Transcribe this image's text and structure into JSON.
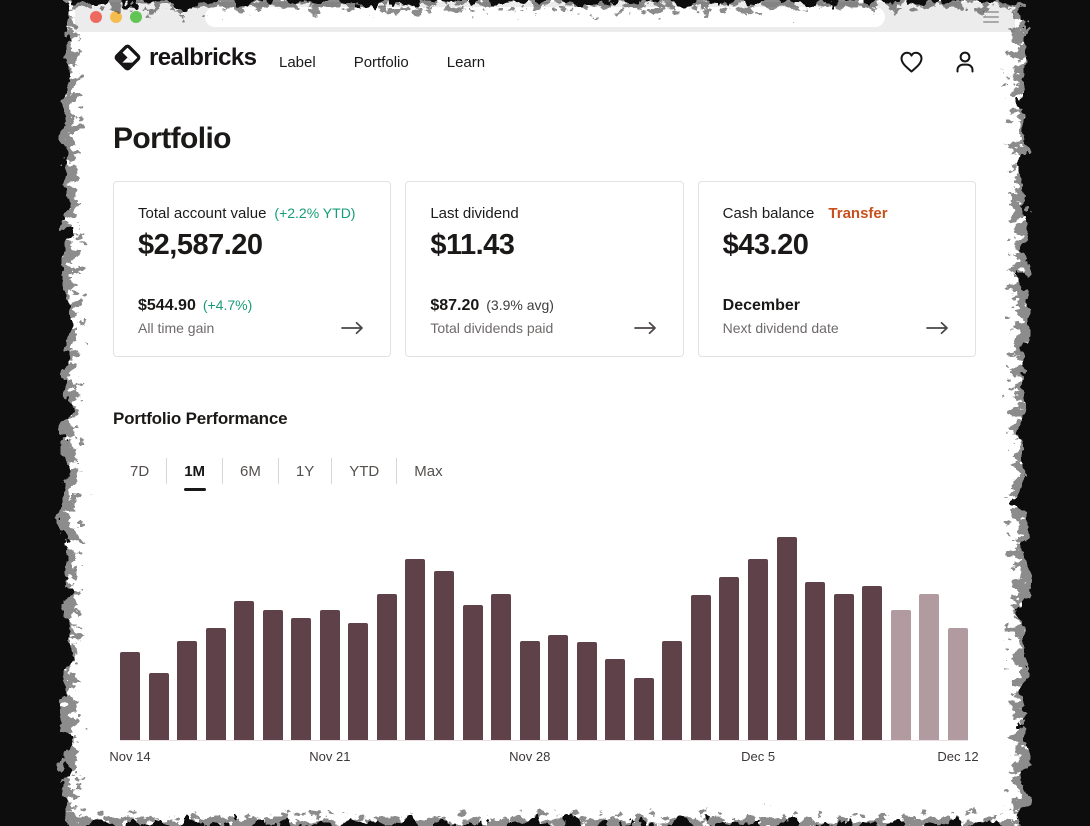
{
  "browser": {
    "traffic_lights": [
      "close",
      "minimize",
      "zoom"
    ],
    "url_value": "",
    "menu_icon": "hamburger-icon"
  },
  "header": {
    "brand": "realbricks",
    "logo_icon": "realbricks-diamond-logo",
    "nav": [
      {
        "label": "Label"
      },
      {
        "label": "Portfolio"
      },
      {
        "label": "Learn"
      }
    ],
    "icons": [
      "heart-icon",
      "user-icon"
    ]
  },
  "page": {
    "title": "Portfolio"
  },
  "cards": [
    {
      "label": "Total account value",
      "badge": "(+2.2% YTD)",
      "badge_color": "#169c77",
      "value": "$2,587.20",
      "sub_value": "$544.90",
      "sub_badge": "(+4.7%)",
      "sub_badge_color": "#169c77",
      "caption": "All time gain"
    },
    {
      "label": "Last dividend",
      "value": "$11.43",
      "sub_value": "$87.20",
      "sub_badge": "(3.9% avg)",
      "sub_badge_color": "#3f3c3c",
      "caption": "Total dividends paid"
    },
    {
      "label": "Cash balance",
      "action": "Transfer",
      "action_color": "#c7511c",
      "value": "$43.20",
      "sub_value": "December",
      "caption": "Next dividend date"
    }
  ],
  "performance": {
    "title": "Portfolio Performance",
    "ranges": [
      "7D",
      "1M",
      "6M",
      "1Y",
      "YTD",
      "Max"
    ],
    "active_range": "1M"
  },
  "chart_data": {
    "type": "bar",
    "title": "Portfolio Performance",
    "xlabel": "",
    "ylabel": "",
    "values": [
      88,
      67,
      99,
      112,
      139,
      130,
      122,
      130,
      117,
      146,
      181,
      169,
      135,
      146,
      99,
      105,
      98,
      81,
      62,
      99,
      145,
      163,
      181,
      203,
      158,
      146,
      154,
      130,
      146,
      112
    ],
    "ylim": [
      0,
      212
    ],
    "ticks": [
      {
        "index": 0,
        "label": "Nov 14"
      },
      {
        "index": 7,
        "label": "Nov 21"
      },
      {
        "index": 14,
        "label": "Nov 28"
      },
      {
        "index": 22,
        "label": "Dec 5"
      },
      {
        "index": 29,
        "label": "Dec 12"
      }
    ],
    "bar_colors": {
      "default": "#5f4249",
      "muted": "#b19aa0"
    },
    "muted_indices": [
      27,
      28,
      29
    ],
    "grid": false,
    "legend": false
  }
}
